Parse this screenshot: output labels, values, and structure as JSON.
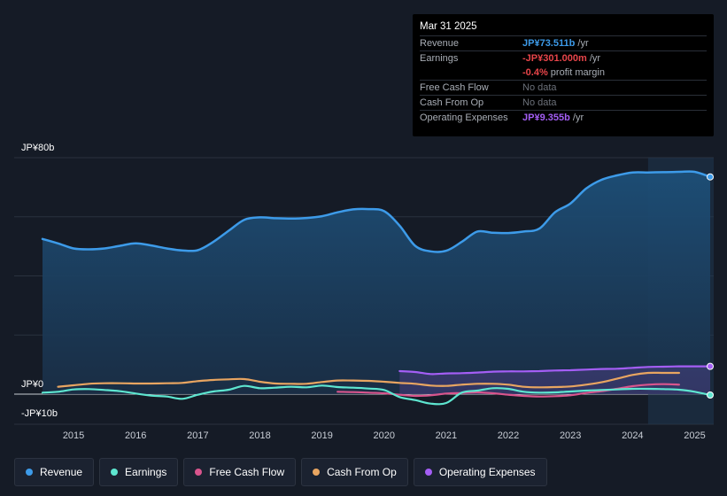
{
  "tooltip": {
    "date": "Mar 31 2025",
    "rows": [
      {
        "label": "Revenue",
        "value": "JP¥73.511b",
        "unit": " /yr",
        "color": "#3d9be9"
      },
      {
        "label": "Earnings",
        "value": "-JP¥301.000m",
        "unit": " /yr",
        "color": "#e8454a"
      },
      {
        "label": "",
        "value": "-0.4%",
        "unit": " profit margin",
        "color": "#e8454a"
      },
      {
        "label": "Free Cash Flow",
        "value": "No data",
        "unit": "",
        "color": "dim"
      },
      {
        "label": "Cash From Op",
        "value": "No data",
        "unit": "",
        "color": "dim"
      },
      {
        "label": "Operating Expenses",
        "value": "JP¥9.355b",
        "unit": " /yr",
        "color": "#a45ef5"
      }
    ]
  },
  "legend": [
    {
      "label": "Revenue",
      "color": "#3d9be9"
    },
    {
      "label": "Earnings",
      "color": "#5ee6d0"
    },
    {
      "label": "Free Cash Flow",
      "color": "#d9558d"
    },
    {
      "label": "Cash From Op",
      "color": "#e8a561"
    },
    {
      "label": "Operating Expenses",
      "color": "#a45ef5"
    }
  ],
  "chart_data": {
    "type": "area",
    "title": "",
    "xlabel": "",
    "ylabel": "",
    "y_tick_labels": [
      {
        "value": 80,
        "label": "JP¥80b"
      },
      {
        "value": 0,
        "label": "JP¥0"
      },
      {
        "value": -10,
        "label": "-JP¥10b"
      }
    ],
    "ylim": [
      -10.5,
      80
    ],
    "xlim": [
      2014.35,
      2025.25
    ],
    "x_ticks": [
      2015,
      2016,
      2017,
      2018,
      2019,
      2020,
      2021,
      2022,
      2023,
      2024,
      2025
    ],
    "forecast_start": 2024.25,
    "series": [
      {
        "name": "Revenue",
        "color": "#3d9be9",
        "fill": true,
        "x": [
          2014.5,
          2014.75,
          2015.0,
          2015.25,
          2015.5,
          2015.75,
          2016.0,
          2016.25,
          2016.5,
          2016.75,
          2017.0,
          2017.25,
          2017.5,
          2017.75,
          2018.0,
          2018.25,
          2018.5,
          2018.75,
          2019.0,
          2019.25,
          2019.5,
          2019.75,
          2020.0,
          2020.25,
          2020.5,
          2020.75,
          2021.0,
          2021.25,
          2021.5,
          2021.75,
          2022.0,
          2022.25,
          2022.5,
          2022.75,
          2023.0,
          2023.25,
          2023.5,
          2023.75,
          2024.0,
          2024.25,
          2024.5,
          2024.75,
          2025.0,
          2025.25
        ],
        "values": [
          52.5,
          51.0,
          49.3,
          49.0,
          49.3,
          50.2,
          51.0,
          50.3,
          49.3,
          48.6,
          48.7,
          51.5,
          55.3,
          59.0,
          59.8,
          59.5,
          59.4,
          59.6,
          60.2,
          61.5,
          62.5,
          62.6,
          61.9,
          57.0,
          50.2,
          48.3,
          48.5,
          51.5,
          55.0,
          54.6,
          54.5,
          55.0,
          56.0,
          61.5,
          64.5,
          69.5,
          72.5,
          74.0,
          75.0,
          75.0,
          75.1,
          75.2,
          75.2,
          73.5
        ]
      },
      {
        "name": "Earnings",
        "color": "#5ee6d0",
        "fill": false,
        "x": [
          2014.5,
          2014.75,
          2015.0,
          2015.25,
          2015.5,
          2015.75,
          2016.0,
          2016.25,
          2016.5,
          2016.75,
          2017.0,
          2017.25,
          2017.5,
          2017.75,
          2018.0,
          2018.25,
          2018.5,
          2018.75,
          2019.0,
          2019.25,
          2019.5,
          2019.75,
          2020.0,
          2020.25,
          2020.5,
          2020.75,
          2021.0,
          2021.25,
          2021.5,
          2021.75,
          2022.0,
          2022.25,
          2022.5,
          2022.75,
          2023.0,
          2023.25,
          2023.5,
          2023.75,
          2024.0,
          2024.25,
          2024.5,
          2024.75,
          2025.0,
          2025.25
        ],
        "values": [
          0.5,
          0.8,
          1.6,
          1.7,
          1.4,
          1.0,
          0.2,
          -0.5,
          -0.8,
          -1.6,
          -0.2,
          0.9,
          1.5,
          2.8,
          2.0,
          2.2,
          2.5,
          2.3,
          2.9,
          2.4,
          2.2,
          1.9,
          1.4,
          -1.0,
          -2.0,
          -3.2,
          -3.0,
          0.5,
          1.2,
          2.0,
          1.8,
          0.8,
          0.5,
          0.6,
          0.9,
          1.2,
          1.4,
          1.6,
          1.8,
          1.8,
          1.7,
          1.5,
          0.8,
          -0.3
        ]
      },
      {
        "name": "Free Cash Flow",
        "color": "#d9558d",
        "fill": false,
        "x": [
          2019.25,
          2019.5,
          2019.75,
          2020.0,
          2020.25,
          2020.5,
          2020.75,
          2021.0,
          2021.25,
          2021.5,
          2021.75,
          2022.0,
          2022.25,
          2022.5,
          2022.75,
          2023.0,
          2023.25,
          2023.5,
          2023.75,
          2024.0,
          2024.25,
          2024.5,
          2024.75
        ],
        "values": [
          0.8,
          0.7,
          0.5,
          0.3,
          -0.2,
          -0.6,
          -0.4,
          0.2,
          0.4,
          0.6,
          0.3,
          -0.2,
          -0.6,
          -0.8,
          -0.7,
          -0.4,
          0.4,
          1.0,
          1.8,
          2.7,
          3.2,
          3.4,
          3.2
        ]
      },
      {
        "name": "Cash From Op",
        "color": "#e8a561",
        "fill": false,
        "x": [
          2014.75,
          2015.0,
          2015.25,
          2015.5,
          2015.75,
          2016.0,
          2016.25,
          2016.5,
          2016.75,
          2017.0,
          2017.25,
          2017.5,
          2017.75,
          2018.0,
          2018.25,
          2018.5,
          2018.75,
          2019.0,
          2019.25,
          2019.5,
          2019.75,
          2020.0,
          2020.25,
          2020.5,
          2020.75,
          2021.0,
          2021.25,
          2021.5,
          2021.75,
          2022.0,
          2022.25,
          2022.5,
          2022.75,
          2023.0,
          2023.25,
          2023.5,
          2023.75,
          2024.0,
          2024.25,
          2024.5,
          2024.75
        ],
        "values": [
          2.5,
          3.0,
          3.5,
          3.7,
          3.7,
          3.6,
          3.6,
          3.7,
          3.8,
          4.4,
          4.8,
          5.0,
          5.1,
          4.2,
          3.6,
          3.5,
          3.5,
          4.1,
          4.6,
          4.6,
          4.5,
          4.2,
          3.8,
          3.5,
          2.9,
          2.8,
          3.2,
          3.5,
          3.5,
          3.2,
          2.5,
          2.3,
          2.4,
          2.6,
          3.2,
          4.0,
          5.2,
          6.5,
          7.2,
          7.2,
          7.2
        ]
      },
      {
        "name": "Operating Expenses",
        "color": "#a45ef5",
        "fill": false,
        "x": [
          2020.25,
          2020.5,
          2020.75,
          2021.0,
          2021.25,
          2021.5,
          2021.75,
          2022.0,
          2022.25,
          2022.5,
          2022.75,
          2023.0,
          2023.25,
          2023.5,
          2023.75,
          2024.0,
          2024.25,
          2024.5,
          2024.75,
          2025.0,
          2025.25
        ],
        "values": [
          7.8,
          7.5,
          6.8,
          7.0,
          7.1,
          7.3,
          7.6,
          7.7,
          7.7,
          7.8,
          8.0,
          8.1,
          8.3,
          8.5,
          8.6,
          8.9,
          9.2,
          9.3,
          9.4,
          9.4,
          9.4
        ]
      }
    ]
  }
}
